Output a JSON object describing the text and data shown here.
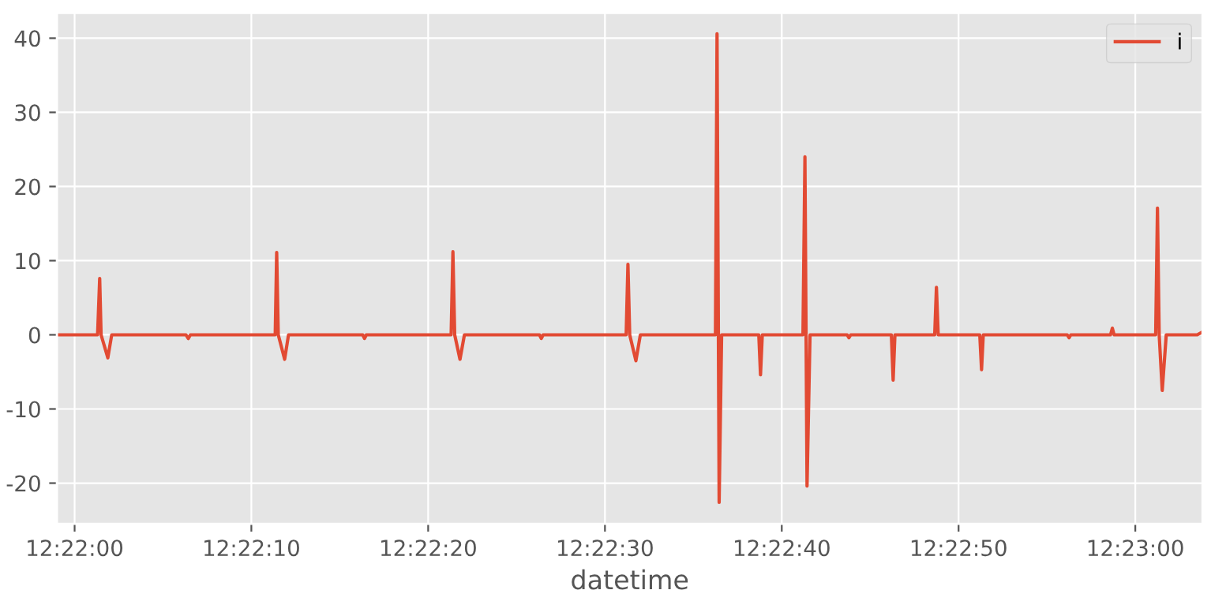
{
  "chart_data": {
    "type": "line",
    "xlabel": "datetime",
    "x": [
      12.366389,
      12.367028,
      12.367061,
      12.367083,
      12.367189,
      12.36725,
      12.368417,
      12.368453,
      12.368486,
      12.369819,
      12.369842,
      12.369867,
      12.369967,
      12.370028,
      12.371194,
      12.371222,
      12.37125,
      12.372583,
      12.372611,
      12.372639,
      12.372722,
      12.372792,
      12.373972,
      12.374,
      12.374028,
      12.375333,
      12.375361,
      12.375389,
      12.375486,
      12.375556,
      12.376736,
      12.376761,
      12.376794,
      12.376833,
      12.377417,
      12.377444,
      12.377472,
      12.378111,
      12.378142,
      12.378175,
      12.378222,
      12.378806,
      12.378833,
      12.378861,
      12.3795,
      12.379528,
      12.379556,
      12.380181,
      12.380208,
      12.380236,
      12.380889,
      12.380917,
      12.380944,
      12.382264,
      12.382292,
      12.382319,
      12.382944,
      12.382972,
      12.383,
      12.383653,
      12.383681,
      12.383708,
      12.383756,
      12.383819,
      12.384306,
      12.384389
    ],
    "series": [
      {
        "name": "i",
        "color": "#e24a33",
        "values": [
          0,
          0,
          7.6,
          0,
          -3.1,
          0,
          0,
          -0.5,
          0,
          0,
          11.1,
          0,
          -3.3,
          0,
          0,
          -0.5,
          0,
          0,
          11.2,
          0,
          -3.3,
          0,
          0,
          -0.5,
          0,
          0,
          9.5,
          0,
          -3.5,
          0,
          0,
          40.6,
          -22.6,
          0,
          0,
          -5.4,
          0,
          0,
          24.0,
          -20.4,
          0,
          0,
          -0.4,
          0,
          0,
          -6.1,
          0,
          0,
          6.4,
          0,
          0,
          -4.7,
          0,
          0,
          -0.4,
          0,
          0,
          0.9,
          0,
          0,
          17.1,
          0,
          -7.5,
          0,
          0,
          0.4
        ]
      }
    ],
    "xlim": [
      12.366389,
      12.384389
    ],
    "xticks": [
      {
        "value": 12.366667,
        "label": "12:22:00"
      },
      {
        "value": 12.369444,
        "label": "12:22:10"
      },
      {
        "value": 12.372222,
        "label": "12:22:20"
      },
      {
        "value": 12.375,
        "label": "12:22:30"
      },
      {
        "value": 12.377778,
        "label": "12:22:40"
      },
      {
        "value": 12.380556,
        "label": "12:22:50"
      },
      {
        "value": 12.383333,
        "label": "12:23:00"
      }
    ],
    "ylim": [
      -25.5,
      43.4
    ],
    "yticks": [
      -20,
      -10,
      0,
      10,
      20,
      30,
      40
    ],
    "grid": true,
    "legend": "top right",
    "line_style": "solid",
    "marker": "none"
  }
}
